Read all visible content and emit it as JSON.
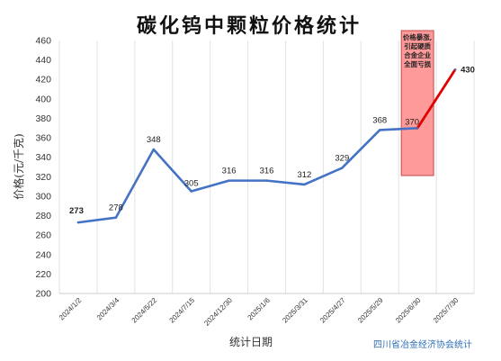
{
  "chart_data": {
    "type": "line",
    "title": "碳化钨中颗粒价格统计",
    "xlabel": "统计日期",
    "ylabel": "价格(元/千克)",
    "source": "四川省冶金经济协会统计",
    "categories": [
      "2024/1/2",
      "2024/3/4",
      "2024/5/22",
      "2024/7/15",
      "2024/12/30",
      "2025/1/6",
      "2025/3/31",
      "2025/4/27",
      "2025/5/29",
      "2025/6/30",
      "2025/7/30"
    ],
    "values": [
      273,
      278,
      348,
      305,
      316,
      316,
      312,
      329,
      368,
      370,
      430
    ],
    "data_labels": [
      "273",
      "278",
      "348",
      "305",
      "316",
      "316",
      "312",
      "329",
      "368",
      "370",
      "430"
    ],
    "ylim": [
      200,
      460
    ],
    "yticks": [
      "200",
      "220",
      "240",
      "260",
      "280",
      "300",
      "320",
      "340",
      "360",
      "380",
      "400",
      "420",
      "440",
      "460"
    ],
    "grid": "vertical",
    "colors": {
      "line": "#4472c4",
      "highlight_line": "#e00000",
      "first_label": "#2e9e48",
      "last_label": "#d81e1e",
      "annotation_fill": "#ff9a9a",
      "annotation_border": "#c84848"
    },
    "annotation": {
      "lines": [
        "价格暴涨,",
        "引起硬质",
        "合金企业",
        "全面亏损"
      ]
    }
  }
}
